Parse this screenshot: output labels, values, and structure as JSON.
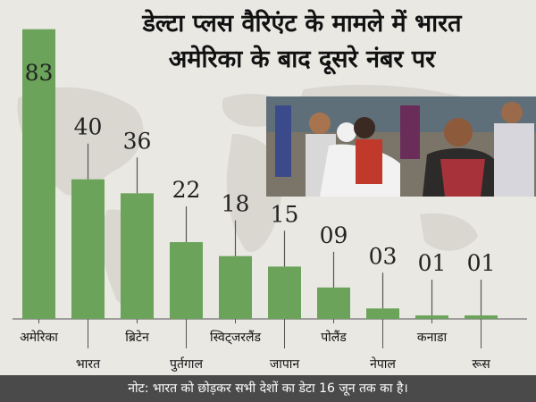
{
  "title": {
    "line1": "डेल्टा प्लस वैरिएंट के मामले में भारत",
    "line2": "अमेरिका के बाद दूसरे नंबर पर"
  },
  "footer_note": "नोट: भारत को छोड़कर सभी देशों का डेटा 16 जून तक का है।",
  "colors": {
    "bar": "#6ba35a",
    "stem": "#555555",
    "footer_bg": "#4a4a4a"
  },
  "chart_data": {
    "type": "bar",
    "title": "डेल्टा प्लस वैरिएंट के मामले में भारत अमेरिका के बाद दूसरे नंबर पर",
    "categories": [
      "अमेरिका",
      "भारत",
      "ब्रिटेन",
      "पुर्तगाल",
      "स्विट्जरलैंड",
      "जापान",
      "पोलैंड",
      "नेपाल",
      "कनाडा",
      "रूस"
    ],
    "values": [
      83,
      40,
      36,
      22,
      18,
      15,
      9,
      3,
      1,
      1
    ],
    "value_labels": [
      "83",
      "40",
      "36",
      "22",
      "18",
      "15",
      "09",
      "03",
      "01",
      "01"
    ],
    "ylim": [
      0,
      90
    ],
    "grid": false,
    "legend": "none"
  }
}
